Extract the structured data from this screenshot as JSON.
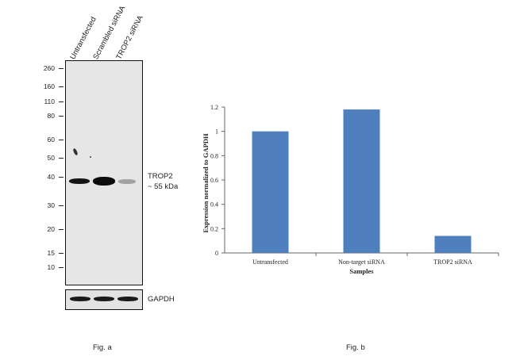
{
  "figure_a": {
    "lanes": [
      "Untransfected",
      "Scrambled siRNA",
      "TROP2 siRNA"
    ],
    "mw_markers": [
      "260",
      "160",
      "110",
      "80",
      "60",
      "50",
      "40",
      "30",
      "20",
      "15",
      "10"
    ],
    "target_label": "TROP2",
    "target_size": "~ 55 kDa",
    "loading_control": "GAPDH",
    "caption": "Fig. a"
  },
  "figure_b": {
    "caption": "Fig. b"
  },
  "chart_data": {
    "type": "bar",
    "categories": [
      "Untransfected",
      "Non-target siRNA",
      "TROP2 siRNA"
    ],
    "values": [
      1.0,
      1.18,
      0.14
    ],
    "xlabel": "Samples",
    "ylabel": "Expression normalized to GAPDH",
    "ylim": [
      0,
      1.2
    ],
    "yticks": [
      "0",
      "0.2",
      "0.4",
      "0.6",
      "0.8",
      "1",
      "1.2"
    ],
    "grid": false,
    "bar_color": "#4f7fbd"
  }
}
